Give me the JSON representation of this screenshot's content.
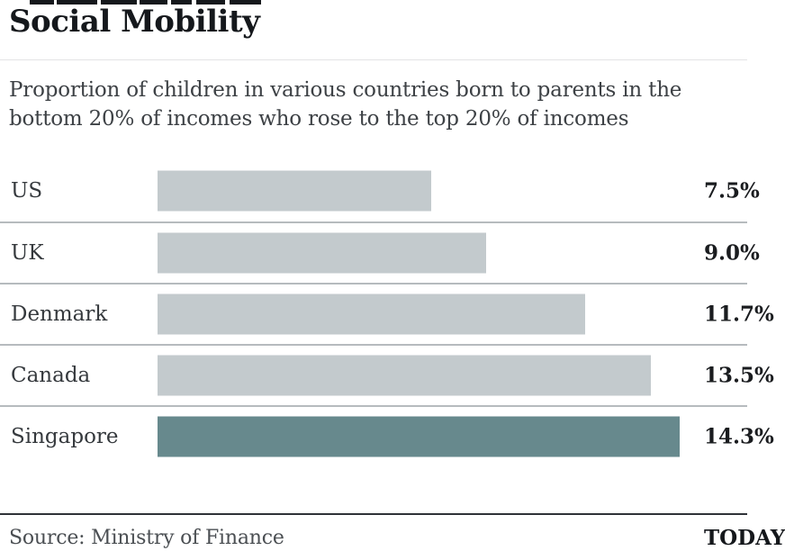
{
  "header": {
    "title": "Social Mobility",
    "subtitle_lines": [
      "Proportion of children in various countries born to parents in the",
      "bottom 20% of incomes who rose to the top 20% of incomes"
    ]
  },
  "chart_data": {
    "type": "bar",
    "orientation": "horizontal",
    "title": "Social Mobility",
    "subtitle": "Proportion of children in various countries born to parents in the bottom 20% of incomes who rose to the top 20% of incomes",
    "categories": [
      "US",
      "UK",
      "Denmark",
      "Canada",
      "Singapore"
    ],
    "values": [
      7.5,
      9.0,
      11.7,
      13.5,
      14.3
    ],
    "value_labels": [
      "7.5%",
      "9.0%",
      "11.7%",
      "13.5%",
      "14.3%"
    ],
    "xlim": [
      0,
      14.3
    ],
    "grid": "off",
    "legend": "none",
    "highlight_category": "Singapore",
    "bar_color": "#c3cacd",
    "highlight_color": "#67898d"
  },
  "footer": {
    "source": "Source: Ministry of Finance",
    "brand": "TODAY"
  },
  "colors": {
    "title_text": "#15181c",
    "body_text": "#3d4145",
    "value_text": "#1a1c1f",
    "row_separator": "#b6bbbe",
    "title_rule": "#e3e4e5",
    "footer_rule": "#2f3338"
  }
}
